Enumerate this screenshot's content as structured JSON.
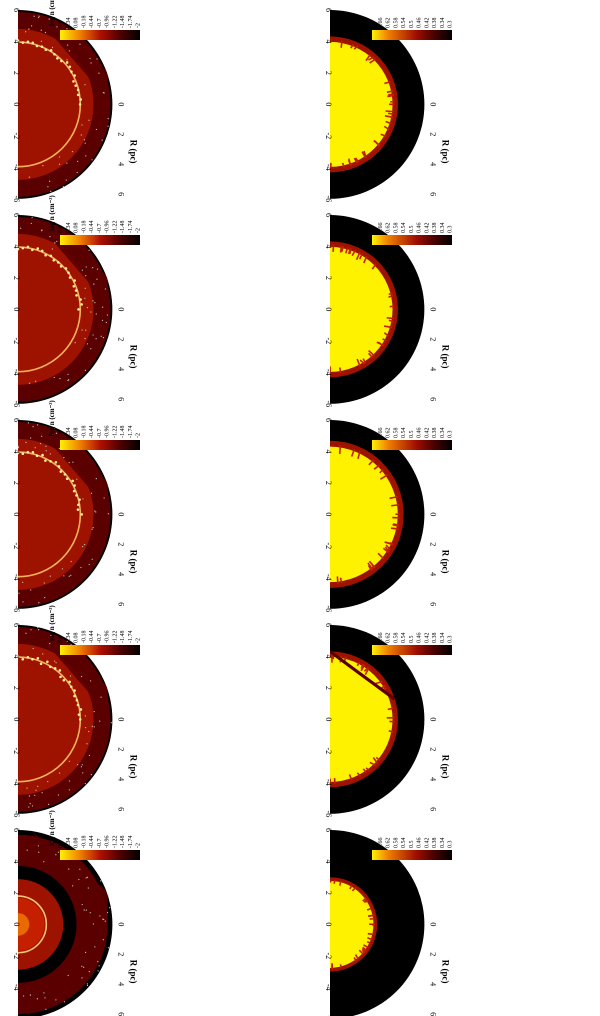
{
  "figure": {
    "columns": [
      {
        "density_label": "log n (cm⁻³)",
        "metal_label": "m"
      },
      {
        "density_label": "log n (cm⁻³)",
        "metal_label": "m"
      },
      {
        "density_label": "log n (cm⁻³)",
        "metal_label": "m"
      },
      {
        "density_label": "log n (cm⁻³)",
        "metal_label": "m"
      },
      {
        "density_label": "log n (cm⁻³)",
        "metal_label": "m"
      }
    ],
    "axis_label": "R (pc)",
    "z_ticks": [
      "6",
      "4",
      "2",
      "0",
      "-2",
      "-4",
      "-6"
    ],
    "r_ticks": [
      "0",
      "2",
      "4",
      "6"
    ],
    "density_cbar_ticks": [
      "0.6",
      "0.34",
      "0.08",
      "-0.18",
      "-0.44",
      "-0.7",
      "-0.96",
      "-1.22",
      "-1.48",
      "-1.74",
      "-2"
    ],
    "metal_cbar_ticks": [
      "0.7",
      "0.66",
      "0.62",
      "0.58",
      "0.54",
      "0.5",
      "0.46",
      "0.42",
      "0.38",
      "0.34",
      "0.3"
    ],
    "colors": {
      "black": "#000000",
      "dark_red": "#5a0000",
      "red": "#9e1200",
      "bright_red": "#c42000",
      "orange": "#e86a00",
      "yellow": "#fff200"
    }
  }
}
